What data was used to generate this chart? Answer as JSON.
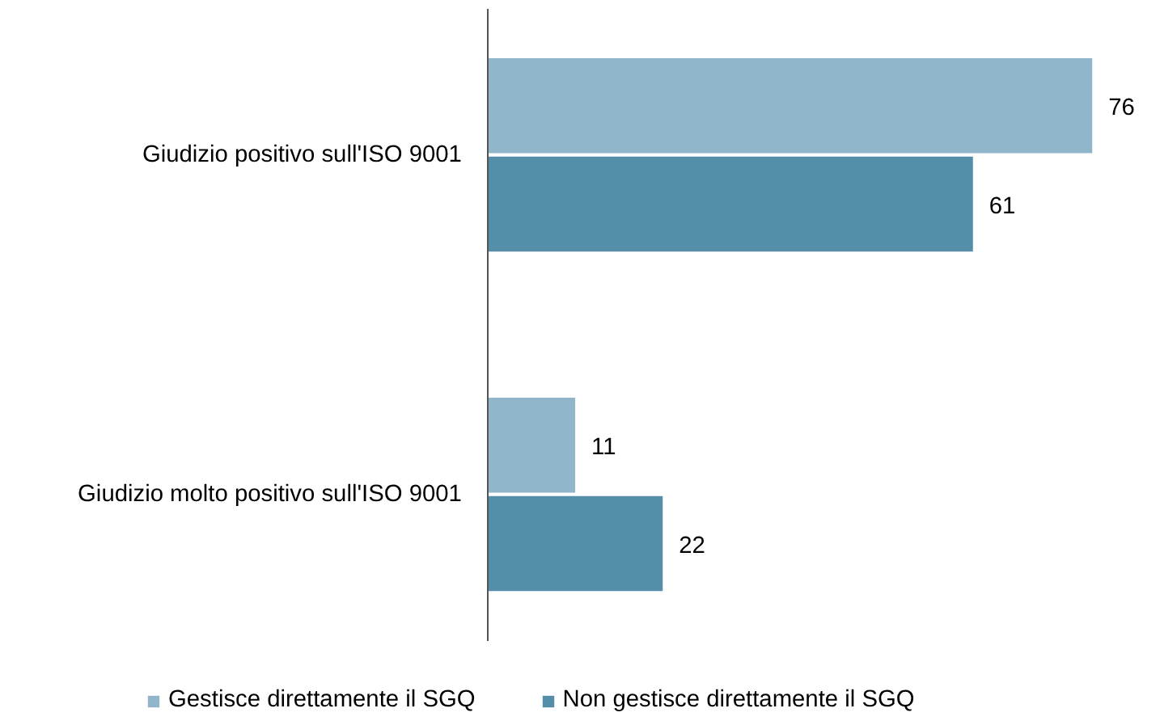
{
  "chart_data": {
    "type": "bar",
    "orientation": "horizontal",
    "categories": [
      "Giudizio positivo sull'ISO 9001",
      "Giudizio molto positivo sull'ISO 9001"
    ],
    "series": [
      {
        "name": "Gestisce direttamente il SGQ",
        "color": "#91b6c9",
        "values": [
          76,
          11
        ]
      },
      {
        "name": "Non gestisce direttamente il SGQ",
        "color": "#548ea9",
        "values": [
          61,
          22
        ]
      }
    ],
    "data_labels": true,
    "legend": "bottom",
    "grid": false
  }
}
